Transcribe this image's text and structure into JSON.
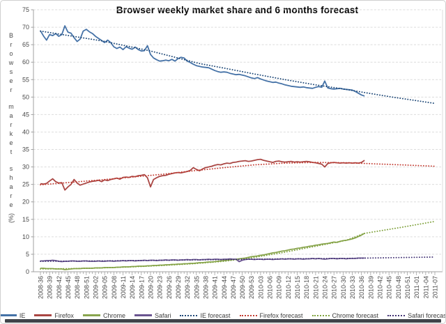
{
  "page": {
    "background": "#ffffff"
  },
  "chart_data": {
    "type": "line",
    "title": "Browser weekly market share and 6 months forecast",
    "ylabel": "Browser market share (%)",
    "xlabel": "",
    "ylim": [
      0,
      75
    ],
    "ytick_step": 5,
    "grid": "horizontal-dashed",
    "legend_position": "bottom",
    "n_points": 130,
    "x_label_every_n_points": 3,
    "x_labels": [
      "2008-36",
      "2008-39",
      "2008-42",
      "2008-45",
      "2008-48",
      "2008-51",
      "2009-02",
      "2009-05",
      "2009-08",
      "2009-11",
      "2009-14",
      "2009-17",
      "2009-20",
      "2009-23",
      "2009-26",
      "2009-29",
      "2009-32",
      "2009-35",
      "2009-38",
      "2009-41",
      "2009-44",
      "2009-47",
      "2009-50",
      "2009-53",
      "2010-03",
      "2010-06",
      "2010-09",
      "2010-12",
      "2010-15",
      "2010-18",
      "2010-21",
      "2010-24",
      "2010-27",
      "2010-30",
      "2010-33",
      "2010-36",
      "2010-39",
      "2010-42",
      "2010-45",
      "2010-48",
      "2010-51",
      "2011-01",
      "2011-04",
      "2011-07"
    ],
    "series": [
      {
        "name": "IE",
        "color": "#4572A7",
        "values": [
          69.0,
          67.5,
          66.3,
          67.9,
          67.6,
          68.2,
          67.4,
          67.9,
          70.4,
          68.6,
          68.3,
          67.0,
          65.9,
          66.6,
          68.9,
          69.4,
          68.7,
          68.2,
          67.4,
          66.8,
          66.2,
          65.6,
          66.3,
          65.6,
          64.4,
          63.9,
          64.3,
          63.6,
          64.4,
          64.0,
          63.7,
          64.3,
          63.6,
          63.2,
          63.3,
          64.7,
          62.2,
          61.2,
          60.7,
          60.3,
          60.4,
          60.6,
          60.4,
          60.8,
          60.3,
          61.0,
          61.4,
          61.2,
          60.3,
          59.9,
          59.4,
          59.0,
          58.8,
          58.6,
          58.5,
          58.4,
          58.0,
          57.6,
          57.3,
          57.1,
          57.2,
          57.1,
          56.8,
          56.6,
          56.4,
          56.5,
          56.3,
          56.1,
          55.8,
          55.5,
          55.3,
          55.6,
          55.2,
          54.9,
          54.6,
          54.4,
          54.2,
          54.3,
          54.0,
          53.8,
          53.5,
          53.3,
          53.1,
          53.0,
          52.9,
          52.8,
          52.9,
          52.7,
          52.6,
          52.5,
          52.8,
          53.0,
          52.8,
          54.6,
          52.6,
          52.4,
          52.3,
          52.4,
          52.5,
          52.3,
          52.2,
          52.1,
          52.0,
          51.6,
          51.1,
          50.6,
          50.3
        ]
      },
      {
        "name": "Firefox",
        "color": "#AA4643",
        "values": [
          25.2,
          25.1,
          25.3,
          26.0,
          26.6,
          25.8,
          25.4,
          25.5,
          23.4,
          24.3,
          25.0,
          26.4,
          25.4,
          24.8,
          25.1,
          25.4,
          25.7,
          25.9,
          26.0,
          26.2,
          25.8,
          26.3,
          26.1,
          26.4,
          26.6,
          26.8,
          26.5,
          27.0,
          27.1,
          27.0,
          27.3,
          27.2,
          27.5,
          27.6,
          27.8,
          26.9,
          24.3,
          26.4,
          26.9,
          27.3,
          27.5,
          27.6,
          27.9,
          28.1,
          28.3,
          28.4,
          28.3,
          28.5,
          28.7,
          29.0,
          29.8,
          29.3,
          28.9,
          29.4,
          29.8,
          30.0,
          30.2,
          30.5,
          30.7,
          30.6,
          30.9,
          31.1,
          31.0,
          31.3,
          31.4,
          31.6,
          31.7,
          31.8,
          31.6,
          31.7,
          31.9,
          32.1,
          32.2,
          31.9,
          31.7,
          31.5,
          31.3,
          31.6,
          31.7,
          31.5,
          31.4,
          31.5,
          31.6,
          31.4,
          31.5,
          31.4,
          31.5,
          31.6,
          31.5,
          31.3,
          31.2,
          31.0,
          30.8,
          30.0,
          31.0,
          31.2,
          31.3,
          31.2,
          31.1,
          31.2,
          31.1,
          31.2,
          31.1,
          31.2,
          31.1,
          31.3,
          31.9
        ]
      },
      {
        "name": "Chrome",
        "color": "#89A54E",
        "values": [
          1.0,
          1.0,
          0.9,
          0.9,
          0.9,
          0.8,
          0.8,
          0.8,
          0.6,
          0.7,
          0.8,
          0.9,
          0.9,
          0.9,
          1.0,
          1.0,
          1.0,
          1.0,
          1.1,
          1.1,
          1.1,
          1.2,
          1.2,
          1.2,
          1.2,
          1.3,
          1.3,
          1.4,
          1.4,
          1.4,
          1.5,
          1.5,
          1.6,
          1.6,
          1.6,
          1.7,
          1.7,
          1.8,
          1.8,
          1.9,
          1.9,
          2.0,
          2.0,
          2.1,
          2.1,
          2.2,
          2.2,
          2.3,
          2.3,
          2.4,
          2.4,
          2.5,
          2.6,
          2.6,
          2.7,
          2.8,
          2.8,
          2.9,
          3.0,
          3.1,
          3.2,
          3.3,
          3.4,
          3.5,
          3.6,
          3.7,
          3.8,
          3.9,
          4.1,
          4.3,
          4.4,
          4.5,
          4.7,
          4.8,
          5.0,
          5.2,
          5.4,
          5.5,
          5.7,
          5.9,
          6.0,
          6.2,
          6.4,
          6.5,
          6.7,
          6.8,
          7.0,
          7.1,
          7.3,
          7.4,
          7.6,
          7.7,
          7.9,
          8.0,
          8.1,
          8.3,
          8.5,
          8.4,
          8.7,
          8.9,
          9.0,
          9.2,
          9.4,
          9.7,
          10.1,
          10.5,
          11.0
        ]
      },
      {
        "name": "Safari",
        "color": "#6A5590",
        "values": [
          3.1,
          3.1,
          3.2,
          3.2,
          3.3,
          3.2,
          3.0,
          2.9,
          3.0,
          3.0,
          3.1,
          3.1,
          3.0,
          3.0,
          3.1,
          3.1,
          3.0,
          3.0,
          3.0,
          3.1,
          3.0,
          3.0,
          3.1,
          3.1,
          3.0,
          3.1,
          3.1,
          3.2,
          3.1,
          3.2,
          3.2,
          3.1,
          3.2,
          3.2,
          3.3,
          3.2,
          3.3,
          3.3,
          3.2,
          3.3,
          3.3,
          3.4,
          3.3,
          3.4,
          3.4,
          3.3,
          3.4,
          3.4,
          3.5,
          3.4,
          3.5,
          3.5,
          3.4,
          3.5,
          3.5,
          3.6,
          3.5,
          3.6,
          3.6,
          3.5,
          3.6,
          3.6,
          3.7,
          3.6,
          3.6,
          2.9,
          3.3,
          3.5,
          3.6,
          3.6,
          3.5,
          3.6,
          3.6,
          3.5,
          3.6,
          3.6,
          3.5,
          3.6,
          3.6,
          3.7,
          3.6,
          3.7,
          3.7,
          3.6,
          3.7,
          3.7,
          3.6,
          3.7,
          3.7,
          3.8,
          3.7,
          3.8,
          3.7,
          3.6,
          3.7,
          3.8,
          3.8,
          3.7,
          3.8,
          3.8,
          3.7,
          3.8,
          3.8,
          3.8,
          3.9,
          3.9,
          3.9
        ]
      }
    ],
    "forecast_series": [
      {
        "name": "IE forecast",
        "color": "#1E4877",
        "points": [
          [
            0,
            68.9
          ],
          [
            10,
            67.5
          ],
          [
            20,
            66.1
          ],
          [
            30,
            64.3
          ],
          [
            36,
            63.2
          ],
          [
            44,
            61.4
          ],
          [
            52,
            59.6
          ],
          [
            60,
            58.3
          ],
          [
            70,
            56.6
          ],
          [
            80,
            55.0
          ],
          [
            90,
            53.5
          ],
          [
            100,
            52.2
          ],
          [
            106,
            51.3
          ],
          [
            115,
            50.0
          ],
          [
            122,
            49.1
          ],
          [
            129,
            48.2
          ]
        ]
      },
      {
        "name": "Firefox forecast",
        "color": "#C23A30",
        "points": [
          [
            0,
            24.9
          ],
          [
            10,
            25.6
          ],
          [
            20,
            26.3
          ],
          [
            30,
            27.1
          ],
          [
            40,
            27.9
          ],
          [
            50,
            28.9
          ],
          [
            60,
            29.8
          ],
          [
            70,
            30.6
          ],
          [
            80,
            31.1
          ],
          [
            90,
            31.3
          ],
          [
            100,
            31.2
          ],
          [
            106,
            31.0
          ],
          [
            118,
            30.6
          ],
          [
            129,
            30.2
          ]
        ]
      },
      {
        "name": "Chrome forecast",
        "color": "#7FA13C",
        "points": [
          [
            0,
            0.8
          ],
          [
            10,
            0.9
          ],
          [
            20,
            1.1
          ],
          [
            30,
            1.4
          ],
          [
            40,
            1.8
          ],
          [
            50,
            2.3
          ],
          [
            60,
            3.0
          ],
          [
            70,
            4.1
          ],
          [
            80,
            5.6
          ],
          [
            90,
            7.3
          ],
          [
            100,
            9.0
          ],
          [
            106,
            11.0
          ],
          [
            118,
            12.7
          ],
          [
            129,
            14.4
          ]
        ]
      },
      {
        "name": "Safari forecast",
        "color": "#413173",
        "points": [
          [
            0,
            3.0
          ],
          [
            20,
            3.1
          ],
          [
            40,
            3.3
          ],
          [
            60,
            3.5
          ],
          [
            80,
            3.7
          ],
          [
            100,
            3.8
          ],
          [
            106,
            3.9
          ],
          [
            129,
            4.2
          ]
        ]
      }
    ]
  },
  "legend": {
    "items": [
      {
        "label": "IE",
        "color": "#4572A7",
        "style": "solid"
      },
      {
        "label": "Firefox",
        "color": "#AA4643",
        "style": "solid"
      },
      {
        "label": "Chrome",
        "color": "#89A54E",
        "style": "solid"
      },
      {
        "label": "Safari",
        "color": "#6A5590",
        "style": "solid"
      },
      {
        "label": "IE forecast",
        "color": "#1E4877",
        "style": "dot"
      },
      {
        "label": "Firefox forecast",
        "color": "#C23A30",
        "style": "dot"
      },
      {
        "label": "Chrome forecast",
        "color": "#7FA13C",
        "style": "dot"
      },
      {
        "label": "Safari forecast",
        "color": "#413173",
        "style": "dot"
      }
    ]
  }
}
